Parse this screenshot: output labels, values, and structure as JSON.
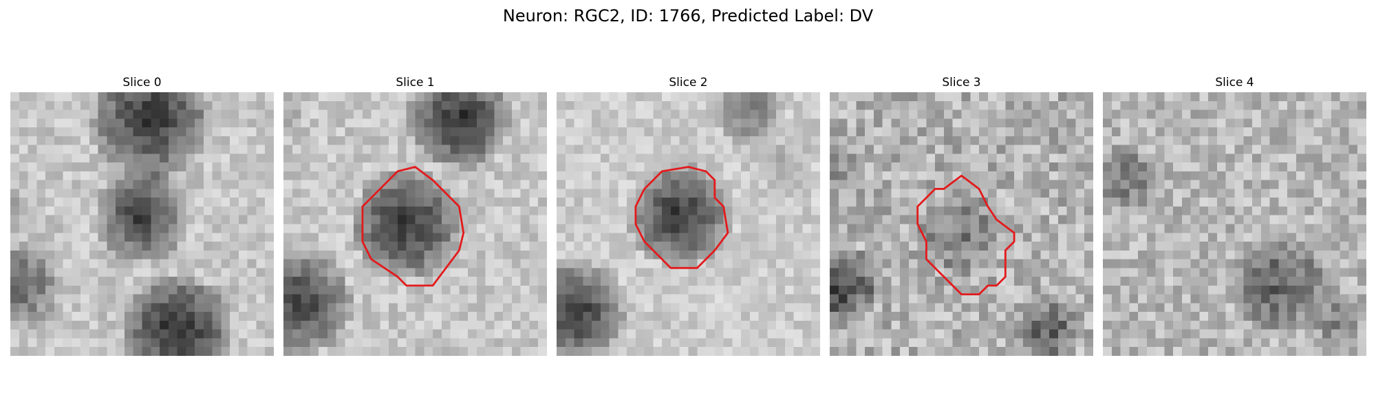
{
  "figure": {
    "title": "Neuron: RGC2, ID: 1766, Predicted Label: DV"
  },
  "colors": {
    "contour": "#e31a1c",
    "colormap": "gray"
  },
  "slices": [
    {
      "title": "Slice 0",
      "has_contour": false
    },
    {
      "title": "Slice 1",
      "has_contour": true
    },
    {
      "title": "Slice 2",
      "has_contour": true
    },
    {
      "title": "Slice 3",
      "has_contour": true
    },
    {
      "title": "Slice 4",
      "has_contour": false
    }
  ]
}
